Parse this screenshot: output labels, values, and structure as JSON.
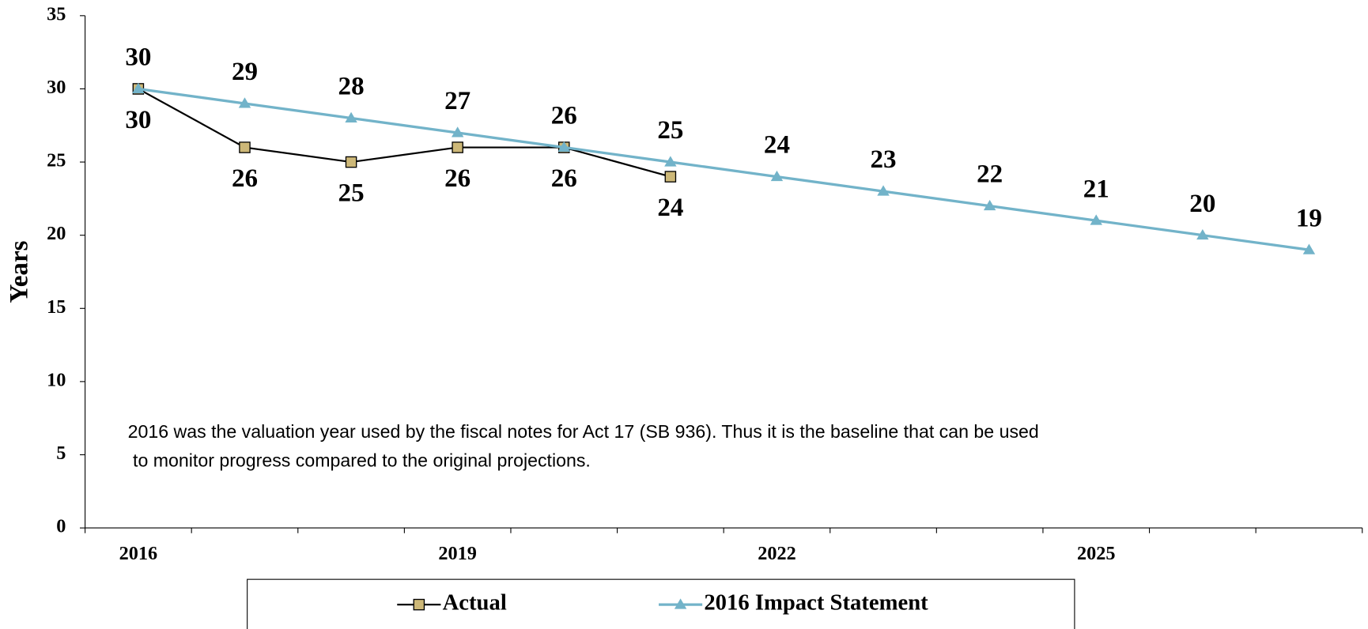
{
  "chart_data": {
    "type": "line",
    "y_label": "Years",
    "categories": [
      "2016",
      null,
      null,
      "2019",
      null,
      null,
      "2022",
      null,
      null,
      "2025",
      null,
      null
    ],
    "series": [
      {
        "name": "Actual",
        "color": "#000000",
        "marker_fill": "#cdb878",
        "marker": "square",
        "label_position": "below",
        "values": [
          30,
          26,
          25,
          26,
          26,
          24,
          null,
          null,
          null,
          null,
          null,
          null
        ]
      },
      {
        "name": "2016 Impact Statement",
        "color": "#72b3c9",
        "marker_fill": "#72b3c9",
        "marker": "triangle",
        "label_position": "above",
        "values": [
          30,
          29,
          28,
          27,
          26,
          25,
          24,
          23,
          22,
          21,
          20,
          19
        ]
      }
    ],
    "ylim": [
      0,
      35
    ],
    "yticks": [
      0,
      5,
      10,
      15,
      20,
      25,
      30,
      35
    ],
    "grid": false,
    "legend": "bottom",
    "annotation": [
      "2016 was the valuation year used by the fiscal notes for Act 17 (SB 936).  Thus it is the baseline that can be used",
      " to monitor progress compared to the original projections."
    ]
  }
}
